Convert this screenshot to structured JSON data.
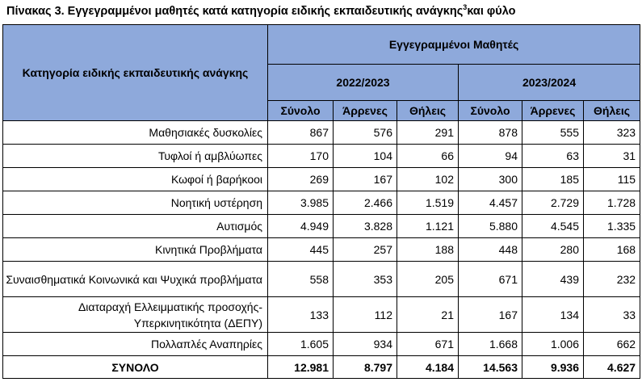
{
  "title": {
    "text": "Πίνακας 3. Εγγεγραμμένοι μαθητές κατά κατηγορία ειδικής εκπαιδευτικής ανάγκης",
    "sup": "3",
    "tail": "και φύλο"
  },
  "header": {
    "category": "Κατηγορία ειδικής εκπαιδευτικής ανάγκης",
    "group": "Εγγεγραμμένοι Μαθητές",
    "year1": "2022/2023",
    "year2": "2023/2024",
    "cols": [
      "Σύνολο",
      "Άρρενες",
      "Θήλεις",
      "Σύνολο",
      "Άρρενες",
      "Θήλεις"
    ]
  },
  "rows": [
    {
      "cat": "Μαθησιακές δυσκολίες",
      "v": [
        "867",
        "576",
        "291",
        "878",
        "555",
        "323"
      ]
    },
    {
      "cat": "Τυφλοί ή αμβλύωπες",
      "v": [
        "170",
        "104",
        "66",
        "94",
        "63",
        "31"
      ]
    },
    {
      "cat": "Κωφοί ή βαρήκοοι",
      "v": [
        "269",
        "167",
        "102",
        "300",
        "185",
        "115"
      ]
    },
    {
      "cat": "Νοητική υστέρηση",
      "v": [
        "3.985",
        "2.466",
        "1.519",
        "4.457",
        "2.729",
        "1.728"
      ]
    },
    {
      "cat": "Αυτισμός",
      "v": [
        "4.949",
        "3.828",
        "1.121",
        "5.880",
        "4.545",
        "1.335"
      ]
    },
    {
      "cat": "Κινητικά Προβλήματα",
      "v": [
        "445",
        "257",
        "188",
        "448",
        "280",
        "168"
      ]
    },
    {
      "cat": "Συναισθηματικά Κοινωνικά και Ψυχικά προβλήματα",
      "v": [
        "558",
        "353",
        "205",
        "671",
        "439",
        "232"
      ]
    },
    {
      "cat": "Διαταραχή Ελλειμματικής προσοχής-Υπερκινητικότητα (ΔΕΠΥ)",
      "v": [
        "133",
        "112",
        "21",
        "167",
        "134",
        "33"
      ]
    },
    {
      "cat": "Πολλαπλές Αναπηρίες",
      "v": [
        "1.605",
        "934",
        "671",
        "1.668",
        "1.006",
        "662"
      ]
    }
  ],
  "total": {
    "cat": "ΣΥΝΟΛΟ",
    "v": [
      "12.981",
      "8.797",
      "4.184",
      "14.563",
      "9.936",
      "4.627"
    ]
  }
}
